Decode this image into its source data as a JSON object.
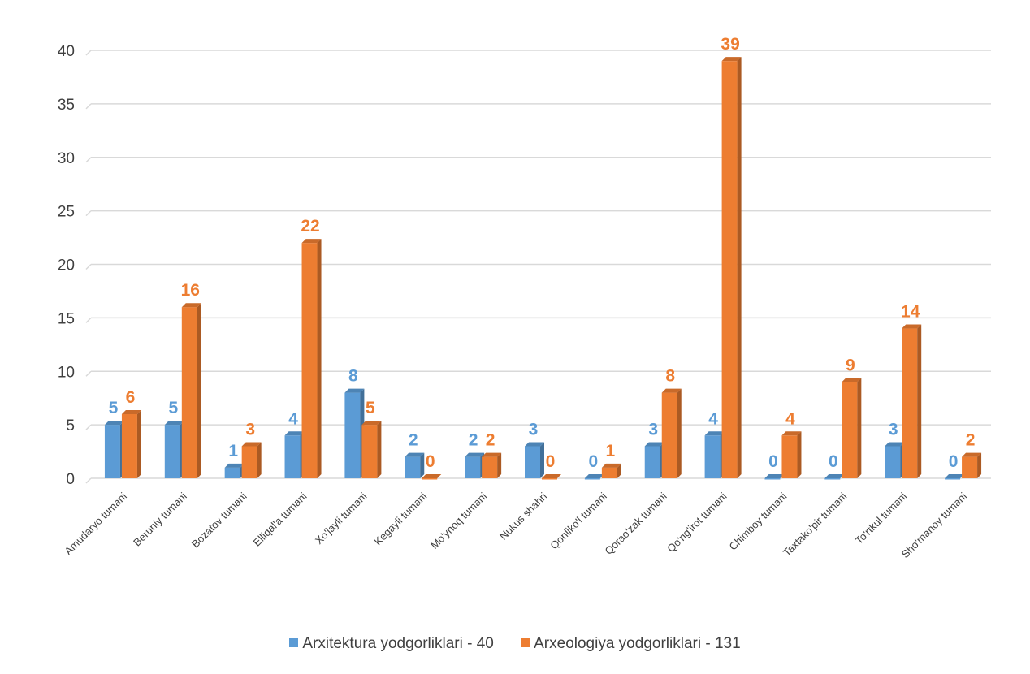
{
  "chart_data": {
    "type": "bar",
    "categories": [
      "Amudaryo tumani",
      "Beruniy tumani",
      "Bozatov tumani",
      "Elliqal'a tumani",
      "Xo'jayli tumani",
      "Kegayli tumani",
      "Mo'ynoq tumani",
      "Nukus shahri",
      "Qonliko'l tumani",
      "Qorao'zak tumani",
      "Qo'ng'irot tumani",
      "Chimboy tumani",
      "Taxtako'pir tumani",
      "To'rtkul tumani",
      "Sho'manoy tumani"
    ],
    "series": [
      {
        "name": "Arxitektura yodgorliklari - 40",
        "color": "#5B9BD5",
        "values": [
          5,
          5,
          1,
          4,
          8,
          2,
          2,
          3,
          0,
          3,
          4,
          0,
          0,
          3,
          0
        ]
      },
      {
        "name": "Arxeologiya yodgorliklari - 131",
        "color": "#ED7D31",
        "values": [
          6,
          16,
          3,
          22,
          5,
          0,
          2,
          0,
          1,
          8,
          39,
          4,
          9,
          14,
          2
        ]
      }
    ],
    "ylim": [
      0,
      40
    ],
    "yticks": [
      0,
      5,
      10,
      15,
      20,
      25,
      30,
      35,
      40
    ],
    "grid": true,
    "legend_position": "bottom",
    "style": "3d-clustered-column",
    "data_labels": true
  }
}
